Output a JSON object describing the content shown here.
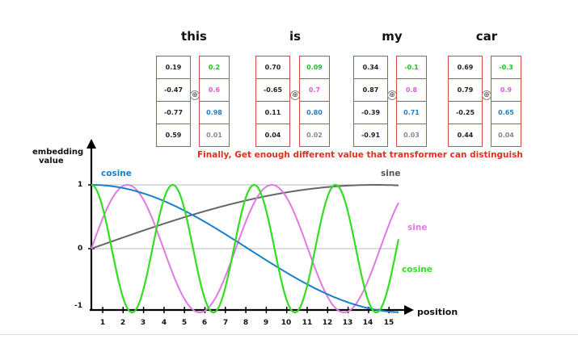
{
  "words": [
    "this",
    "is",
    "my",
    "car"
  ],
  "embeddings": [
    {
      "a": [
        "0.19",
        "-0.47",
        "-0.77",
        "0.59"
      ],
      "b": [
        "0.2",
        "0.6",
        "0.98",
        "0.01"
      ]
    },
    {
      "a": [
        "0.70",
        "-0.65",
        "0.11",
        "0.04"
      ],
      "b": [
        "0.09",
        "0.7",
        "0.80",
        "0.02"
      ]
    },
    {
      "a": [
        "0.34",
        "0.87",
        "-0.39",
        "-0.91"
      ],
      "b": [
        "-0.1",
        "0.8",
        "0.71",
        "0.03"
      ]
    },
    {
      "a": [
        "0.69",
        "0.79",
        "-0.25",
        "0.44"
      ],
      "b": [
        "-0.3",
        "0.9",
        "0.65",
        "0.04"
      ]
    }
  ],
  "row_colors": [
    "#1fbf1f",
    "#e05adf",
    "#1a7fc8",
    "#888888"
  ],
  "plus_symbol": "⊕",
  "headline": "Finally, Get enough different value that transformer can distinguish",
  "y_axis_label_1": "embedding",
  "y_axis_label_2": "value",
  "y_ticks": [
    "1",
    "0",
    "-1"
  ],
  "x_axis_label": "position",
  "x_ticks": [
    "1",
    "2",
    "3",
    "4",
    "5",
    "6",
    "7",
    "8",
    "9",
    "10",
    "11",
    "12",
    "13",
    "14",
    "15"
  ],
  "curve_labels": {
    "cosine_top": "cosine",
    "sine_top": "sine",
    "sine_right": "sine",
    "cosine_right": "cosine"
  },
  "colors": {
    "blue": "#1a7fc8",
    "gray": "#666666",
    "pink": "#e07ae0",
    "green": "#33dd22",
    "red": "#e0301e"
  }
}
